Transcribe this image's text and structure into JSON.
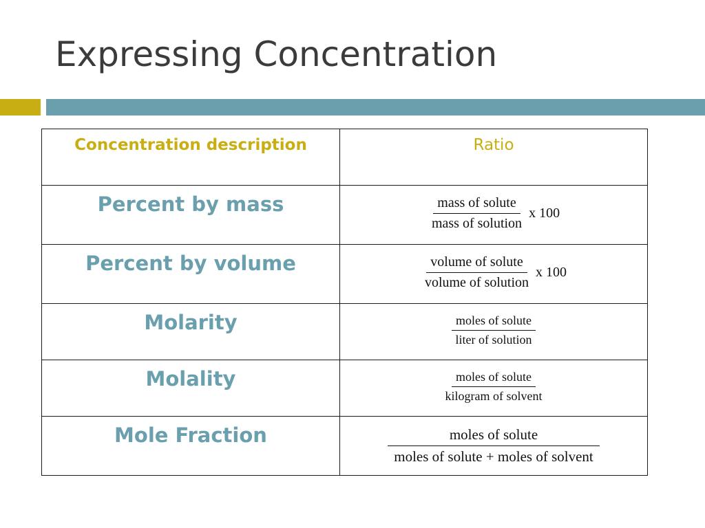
{
  "title": "Expressing Concentration",
  "colors": {
    "title_text": "#3b3b3b",
    "accent_gold": "#c9ae13",
    "accent_blue": "#6a9fae"
  },
  "table": {
    "header": {
      "description": "Concentration description",
      "ratio": "Ratio"
    },
    "rows": [
      {
        "label": "Percent by mass",
        "numerator": "mass of solute",
        "denominator": "mass of solution",
        "multiplier": "x 100"
      },
      {
        "label": "Percent by volume",
        "numerator": "volume of solute",
        "denominator": "volume of solution",
        "multiplier": "x 100"
      },
      {
        "label": "Molarity",
        "numerator": "moles of solute",
        "denominator": "liter of solution",
        "multiplier": ""
      },
      {
        "label": "Molality",
        "numerator": "moles of solute",
        "denominator": "kilogram of solvent",
        "multiplier": ""
      },
      {
        "label": "Mole Fraction",
        "numerator": "moles of solute",
        "denominator": "moles of solute + moles of solvent",
        "multiplier": ""
      }
    ]
  }
}
